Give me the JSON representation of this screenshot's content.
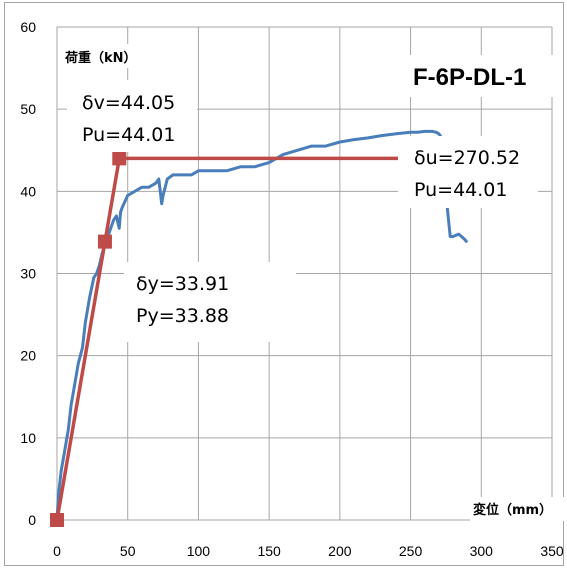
{
  "chart_data": {
    "type": "line",
    "title": "F-6P-DL-1",
    "xlabel": "変位（mm）",
    "ylabel": "荷重（kN）",
    "xlim": [
      0,
      350
    ],
    "ylim": [
      0,
      60
    ],
    "x_ticks": [
      0,
      50,
      100,
      150,
      200,
      250,
      300,
      350
    ],
    "y_ticks": [
      0,
      10,
      20,
      30,
      40,
      50,
      60
    ],
    "grid": true,
    "series": [
      {
        "color": "#4a7ebb",
        "x": [
          0,
          1,
          3,
          5,
          8,
          10,
          12,
          15,
          18,
          20,
          23,
          26,
          28,
          30,
          32,
          34,
          36,
          38,
          40,
          42,
          44,
          45,
          46,
          50,
          55,
          60,
          65,
          70,
          72,
          74,
          75,
          78,
          82,
          88,
          95,
          100,
          110,
          120,
          130,
          140,
          150,
          160,
          170,
          180,
          190,
          200,
          210,
          220,
          230,
          240,
          250,
          255,
          260,
          265,
          268,
          270,
          272,
          274,
          276,
          278,
          280,
          284,
          288,
          290
        ],
        "y": [
          0,
          3,
          6,
          8,
          11,
          14,
          16,
          19,
          21,
          24,
          27,
          29.5,
          30,
          31,
          32.5,
          33.5,
          34.5,
          35.5,
          36.5,
          37,
          35.5,
          37.5,
          38,
          39.5,
          40,
          40.5,
          40.5,
          41,
          41.5,
          38.5,
          39.5,
          41.5,
          42,
          42,
          42,
          42.5,
          42.5,
          42.5,
          43,
          43,
          43.5,
          44.5,
          45,
          45.5,
          45.5,
          46,
          46.3,
          46.5,
          46.8,
          47,
          47.2,
          47.2,
          47.3,
          47.3,
          47.2,
          47,
          46.5,
          44,
          38,
          34.5,
          34.5,
          34.8,
          34.2,
          33.8
        ]
      },
      {
        "color": "#be4b48",
        "x": [
          0,
          33.91,
          44.05,
          270.52
        ],
        "y": [
          0,
          33.88,
          44.01,
          44.01
        ]
      }
    ],
    "markers": [
      {
        "x": 0,
        "y": 0
      },
      {
        "x": 33.91,
        "y": 33.88
      },
      {
        "x": 44.05,
        "y": 44.01
      }
    ],
    "annotations": [
      {
        "lines": [
          "δv=44.05",
          "Pu=44.01"
        ]
      },
      {
        "lines": [
          "δu=270.52",
          "Pu=44.01"
        ]
      },
      {
        "lines": [
          "δy=33.91",
          "Py=33.88"
        ]
      }
    ]
  }
}
